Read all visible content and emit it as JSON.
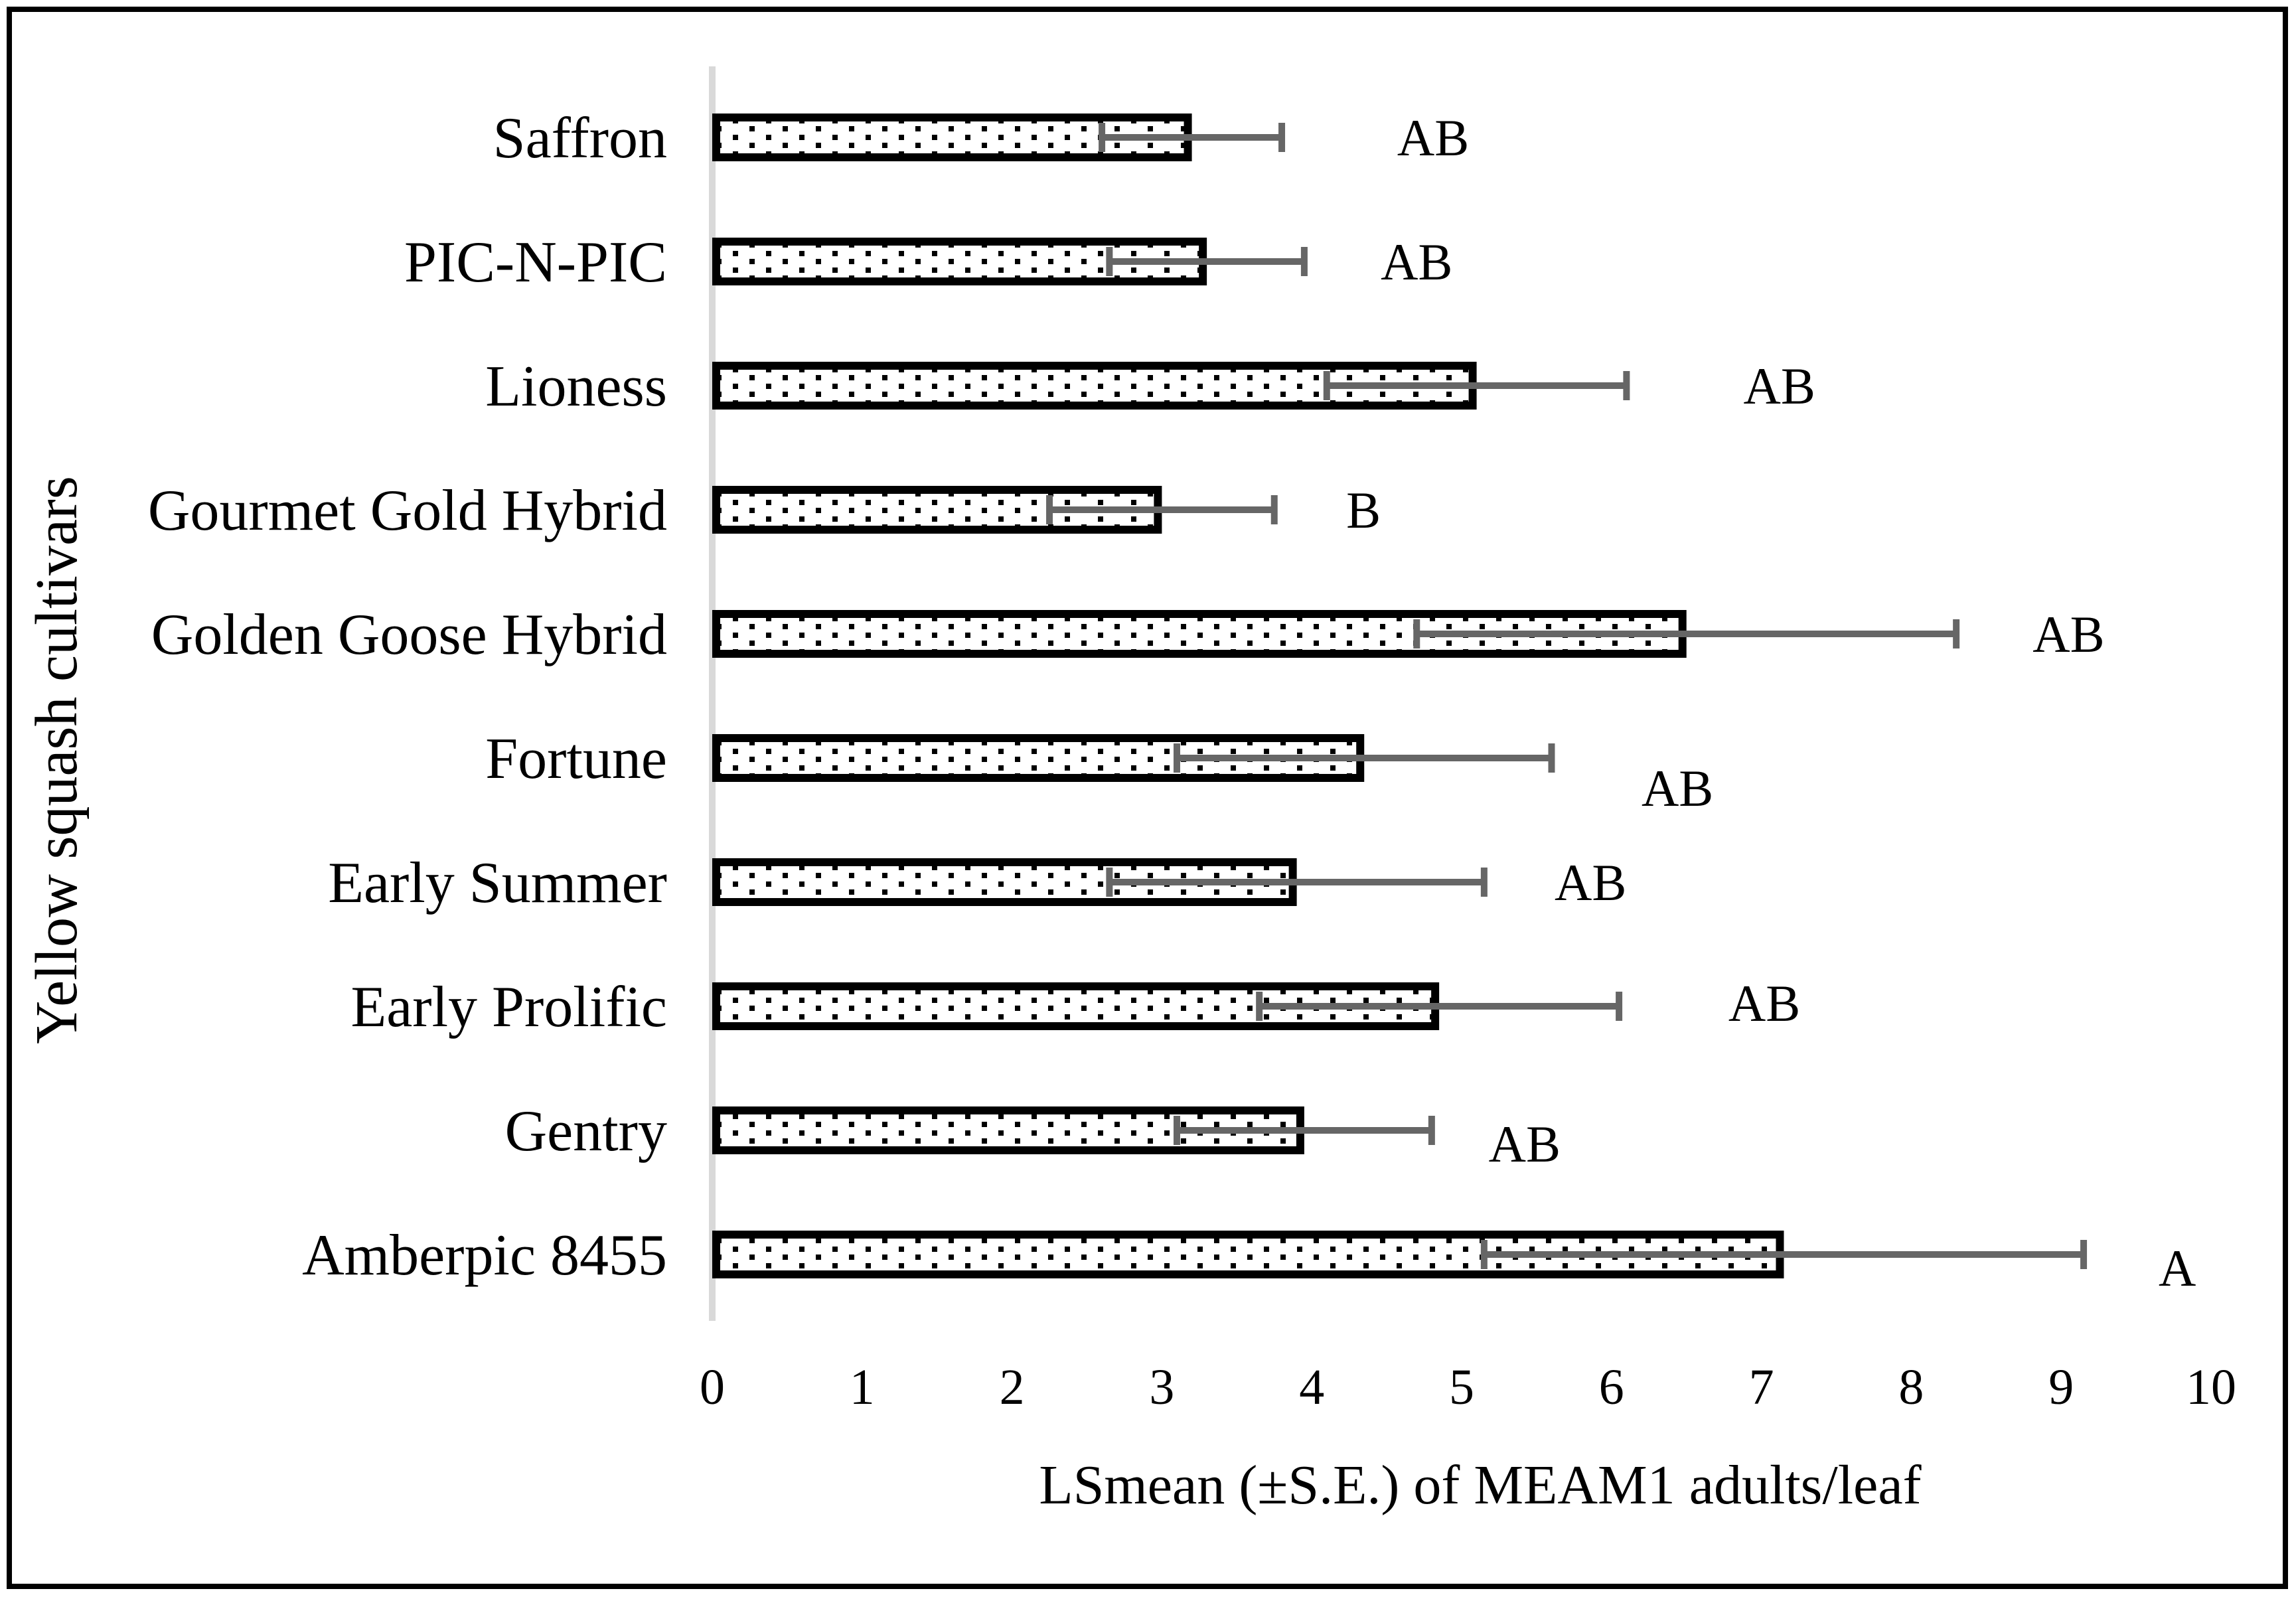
{
  "figure": {
    "background": "#ffffff",
    "border_color": "#000000"
  },
  "chart_data": {
    "type": "bar",
    "orientation": "horizontal",
    "title": "",
    "xlabel": "LSmean (±S.E.) of MEAM1 adults/leaf",
    "ylabel": "Yellow squash cultivars",
    "xlim": [
      0,
      10
    ],
    "xticks": [
      "0",
      "1",
      "2",
      "3",
      "4",
      "5",
      "6",
      "7",
      "8",
      "9",
      "10"
    ],
    "grid": false,
    "legend": "none",
    "bar_style": {
      "fill": "white with black dot pattern",
      "bar_border_color": "#000000",
      "error_bar_color": "#666666",
      "category_axis_line_color": "#d9d9d9",
      "text_color": "#000000"
    },
    "categories": [
      "Saffron",
      "PIC-N-PIC",
      "Lioness",
      "Gourmet Gold Hybrid",
      "Golden Goose Hybrid",
      "Fortune",
      "Early Summer",
      "Early Prolific",
      "Gentry",
      "Amberpic 8455"
    ],
    "series": [
      {
        "name": "LSmean of MEAM1 adults per leaf",
        "values": [
          3.2,
          3.3,
          5.1,
          3.0,
          6.5,
          4.35,
          3.9,
          4.85,
          3.95,
          7.15
        ],
        "se": [
          0.6,
          0.65,
          1.0,
          0.75,
          1.8,
          1.25,
          1.25,
          1.2,
          0.85,
          2.0
        ]
      }
    ],
    "sig_letters": [
      "AB",
      "AB",
      "AB",
      "B",
      "AB",
      "AB",
      "AB",
      "AB",
      "AB",
      "A"
    ],
    "letter_x": [
      4.57,
      4.46,
      6.88,
      4.23,
      8.81,
      6.2,
      5.62,
      6.78,
      5.18,
      9.65
    ],
    "letter_dy": [
      0,
      0,
      0,
      0,
      0,
      45,
      0,
      -5,
      20,
      20
    ]
  }
}
